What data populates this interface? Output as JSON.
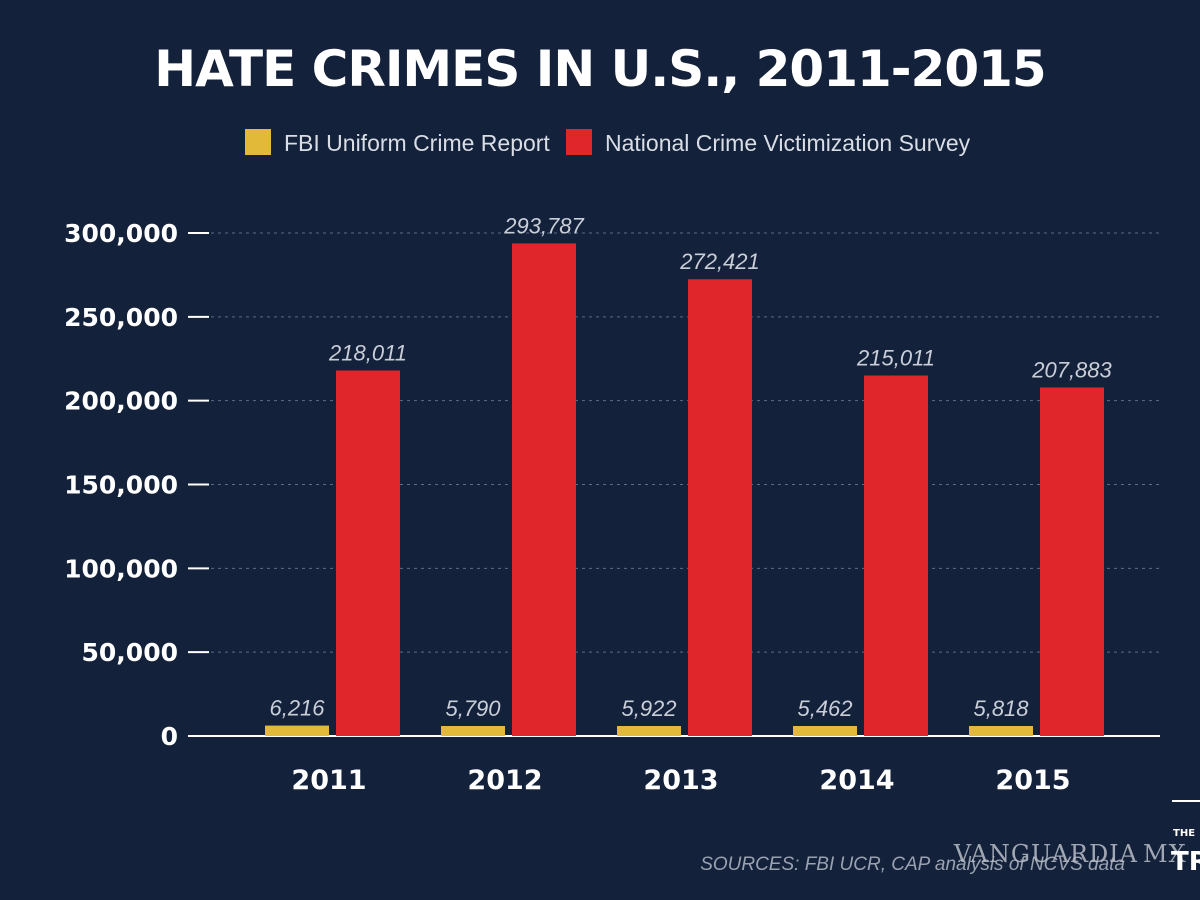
{
  "chart_data": {
    "type": "bar",
    "title": "HATE CRIMES IN U.S., 2011-2015",
    "categories": [
      "2011",
      "2012",
      "2013",
      "2014",
      "2015"
    ],
    "series": [
      {
        "name": "FBI Uniform Crime Report",
        "color": "#e3b93a",
        "values": [
          6216,
          5790,
          5922,
          5462,
          5818
        ],
        "labels": [
          "6,216",
          "5,790",
          "5,922",
          "5,462",
          "5,818"
        ]
      },
      {
        "name": "National Crime Victimization Survey",
        "color": "#e0262a",
        "values": [
          218011,
          293787,
          272421,
          215011,
          207883
        ],
        "labels": [
          "218,011",
          "293,787",
          "272,421",
          "215,011",
          "207,883"
        ]
      }
    ],
    "yticks": [
      0,
      50000,
      100000,
      150000,
      200000,
      250000,
      300000
    ],
    "ytick_labels": [
      "0",
      "50,000",
      "100,000",
      "150,000",
      "200,000",
      "250,000",
      "300,000"
    ],
    "ylim": [
      0,
      300000
    ],
    "xlabel": "",
    "ylabel": "",
    "grid": true,
    "legend": "top-center"
  },
  "source": "SOURCES: FBI UCR, CAP analysis of NCVS data",
  "watermark": "VANGUARDIA",
  "watermark_suffix": "MX",
  "logo": {
    "top": "THE",
    "main": "TRA"
  },
  "colors": {
    "background": "#13213a",
    "grid": "#5d6b85"
  }
}
